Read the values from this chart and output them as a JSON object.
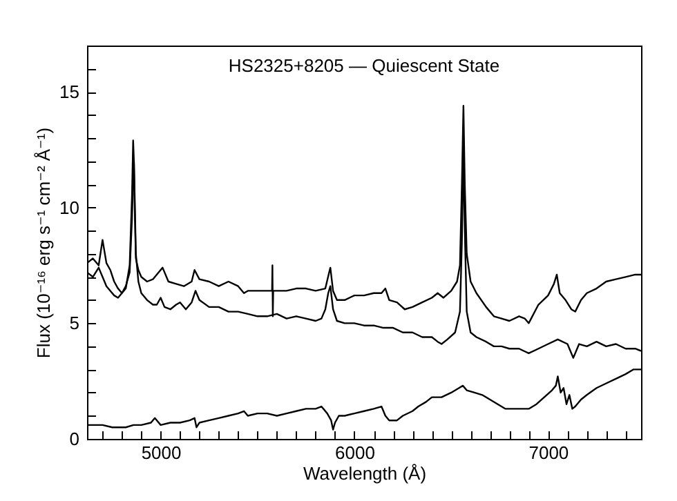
{
  "chart_data": {
    "type": "line",
    "title": "HS2325+8205 — Quiescent State",
    "xlabel": "Wavelength (Å)",
    "ylabel": "Flux (10⁻¹⁶ erg s⁻¹ cm⁻² Å⁻¹)",
    "xlim": [
      4620,
      7480
    ],
    "ylim": [
      0,
      17
    ],
    "xticks": [
      {
        "value": 4700,
        "label": null
      },
      {
        "value": 4800,
        "label": null
      },
      {
        "value": 4900,
        "label": null
      },
      5000,
      {
        "value": 5100,
        "label": null
      },
      {
        "value": 5200,
        "label": null
      },
      {
        "value": 5300,
        "label": null
      },
      {
        "value": 5400,
        "label": null
      },
      {
        "value": 5500,
        "label": null
      },
      {
        "value": 5600,
        "label": null
      },
      {
        "value": 5700,
        "label": null
      },
      {
        "value": 5800,
        "label": null
      },
      {
        "value": 5900,
        "label": null
      },
      6000,
      {
        "value": 6100,
        "label": null
      },
      {
        "value": 6200,
        "label": null
      },
      {
        "value": 6300,
        "label": null
      },
      {
        "value": 6400,
        "label": null
      },
      {
        "value": 6500,
        "label": null
      },
      {
        "value": 6600,
        "label": null
      },
      {
        "value": 6700,
        "label": null
      },
      {
        "value": 6800,
        "label": null
      },
      {
        "value": 6900,
        "label": null
      },
      7000,
      {
        "value": 7100,
        "label": null
      },
      {
        "value": 7200,
        "label": null
      },
      {
        "value": 7300,
        "label": null
      },
      {
        "value": 7400,
        "label": null
      }
    ],
    "yticks": [
      0,
      {
        "value": 1,
        "label": null
      },
      {
        "value": 2,
        "label": null
      },
      {
        "value": 3,
        "label": null
      },
      {
        "value": 4,
        "label": null
      },
      5,
      {
        "value": 6,
        "label": null
      },
      {
        "value": 7,
        "label": null
      },
      {
        "value": 8,
        "label": null
      },
      {
        "value": 9,
        "label": null
      },
      10,
      {
        "value": 11,
        "label": null
      },
      {
        "value": 12,
        "label": null
      },
      {
        "value": 13,
        "label": null
      },
      {
        "value": 14,
        "label": null
      },
      15,
      {
        "value": 16,
        "label": null
      }
    ],
    "marker": "none",
    "line_style": "solid",
    "series": [
      {
        "color": "#000000",
        "x": [
          4620,
          4650,
          4680,
          4700,
          4720,
          4740,
          4760,
          4780,
          4800,
          4820,
          4840,
          4852,
          4858,
          4862,
          4866,
          4872,
          4885,
          4900,
          4930,
          4960,
          4990,
          5010,
          5040,
          5080,
          5120,
          5160,
          5175,
          5200,
          5250,
          5300,
          5350,
          5400,
          5430,
          5450,
          5500,
          5550,
          5575,
          5577,
          5579,
          5581,
          5650,
          5700,
          5750,
          5800,
          5850,
          5870,
          5876,
          5890,
          5910,
          5950,
          6000,
          6050,
          6100,
          6140,
          6160,
          6180,
          6220,
          6260,
          6300,
          6350,
          6400,
          6430,
          6460,
          6500,
          6530,
          6545,
          6555,
          6563,
          6570,
          6580,
          6600,
          6630,
          6680,
          6720,
          6760,
          6800,
          6850,
          6880,
          6900,
          6950,
          7000,
          7030,
          7045,
          7060,
          7090,
          7120,
          7140,
          7170,
          7200,
          7250,
          7300,
          7350,
          7400,
          7450,
          7480
        ],
        "values": [
          7.6,
          7.8,
          7.5,
          8.6,
          7.6,
          7.3,
          6.8,
          6.5,
          6.3,
          6.5,
          7.5,
          10.5,
          12.9,
          12.0,
          10.0,
          7.8,
          7.3,
          7.0,
          6.8,
          6.9,
          7.2,
          7.4,
          6.8,
          6.7,
          6.6,
          6.8,
          7.3,
          6.9,
          6.8,
          6.6,
          6.8,
          6.6,
          6.3,
          6.4,
          6.4,
          6.4,
          6.4,
          7.5,
          5.3,
          6.4,
          6.4,
          6.5,
          6.5,
          6.4,
          6.5,
          7.2,
          7.4,
          6.4,
          6.0,
          6.0,
          6.2,
          6.2,
          6.3,
          6.3,
          6.5,
          6.0,
          5.9,
          5.6,
          5.7,
          5.9,
          6.1,
          6.3,
          6.1,
          6.4,
          6.8,
          7.5,
          11.0,
          14.4,
          11.0,
          8.0,
          6.8,
          6.3,
          5.7,
          5.3,
          5.2,
          5.1,
          5.3,
          5.2,
          5.0,
          5.8,
          6.2,
          6.7,
          7.1,
          6.3,
          6.0,
          5.6,
          5.5,
          6.0,
          6.3,
          6.5,
          6.8,
          6.9,
          7.0,
          7.1,
          7.1
        ]
      },
      {
        "color": "#000000",
        "x": [
          4620,
          4650,
          4680,
          4700,
          4720,
          4740,
          4760,
          4780,
          4800,
          4820,
          4840,
          4852,
          4858,
          4862,
          4866,
          4872,
          4885,
          4900,
          4930,
          4960,
          4980,
          5000,
          5020,
          5050,
          5080,
          5100,
          5130,
          5160,
          5180,
          5200,
          5250,
          5300,
          5350,
          5400,
          5450,
          5500,
          5550,
          5600,
          5650,
          5700,
          5750,
          5800,
          5830,
          5850,
          5865,
          5876,
          5890,
          5910,
          5950,
          6000,
          6050,
          6100,
          6150,
          6200,
          6250,
          6300,
          6350,
          6400,
          6430,
          6450,
          6480,
          6520,
          6545,
          6555,
          6563,
          6570,
          6580,
          6600,
          6630,
          6680,
          6720,
          6760,
          6800,
          6850,
          6900,
          6950,
          7000,
          7050,
          7100,
          7130,
          7160,
          7200,
          7250,
          7300,
          7350,
          7400,
          7450,
          7480
        ],
        "values": [
          7.2,
          7.0,
          7.4,
          7.0,
          6.6,
          6.4,
          6.2,
          6.1,
          6.3,
          6.6,
          7.2,
          9.5,
          11.4,
          12.0,
          10.5,
          8.0,
          6.8,
          6.3,
          6.0,
          5.8,
          5.8,
          6.1,
          5.7,
          5.6,
          5.8,
          5.9,
          5.6,
          5.9,
          6.4,
          6.0,
          5.7,
          5.7,
          5.5,
          5.5,
          5.4,
          5.3,
          5.3,
          5.4,
          5.2,
          5.3,
          5.2,
          5.1,
          5.2,
          5.6,
          6.3,
          6.6,
          5.6,
          5.1,
          5.0,
          5.0,
          4.9,
          4.9,
          4.8,
          4.8,
          4.6,
          4.6,
          4.4,
          4.4,
          4.2,
          4.1,
          4.3,
          4.6,
          5.5,
          8.5,
          12.4,
          9.0,
          5.5,
          4.6,
          4.4,
          4.2,
          4.0,
          4.0,
          3.9,
          3.9,
          3.7,
          3.9,
          4.1,
          4.3,
          4.1,
          3.5,
          4.1,
          4.0,
          4.2,
          4.0,
          4.1,
          3.9,
          3.9,
          3.8
        ]
      },
      {
        "color": "#000000",
        "x": [
          4620,
          4660,
          4700,
          4750,
          4780,
          4820,
          4860,
          4900,
          4950,
          4970,
          5000,
          5050,
          5100,
          5150,
          5175,
          5185,
          5200,
          5250,
          5300,
          5350,
          5400,
          5430,
          5450,
          5500,
          5550,
          5600,
          5650,
          5700,
          5750,
          5800,
          5830,
          5860,
          5880,
          5890,
          5900,
          5920,
          5950,
          6000,
          6050,
          6100,
          6140,
          6160,
          6180,
          6220,
          6250,
          6300,
          6330,
          6370,
          6400,
          6450,
          6500,
          6540,
          6560,
          6580,
          6620,
          6660,
          6700,
          6740,
          6780,
          6820,
          6860,
          6900,
          6940,
          6980,
          7020,
          7040,
          7050,
          7065,
          7080,
          7095,
          7110,
          7125,
          7140,
          7170,
          7200,
          7250,
          7300,
          7350,
          7400,
          7440,
          7480
        ],
        "values": [
          0.6,
          0.6,
          0.6,
          0.5,
          0.5,
          0.5,
          0.6,
          0.6,
          0.7,
          0.9,
          0.6,
          0.7,
          0.7,
          0.8,
          0.9,
          0.5,
          0.7,
          0.8,
          0.9,
          1.0,
          1.1,
          1.2,
          1.0,
          1.1,
          1.1,
          1.0,
          1.1,
          1.2,
          1.3,
          1.3,
          1.4,
          1.1,
          0.8,
          0.4,
          0.7,
          1.0,
          1.0,
          1.1,
          1.2,
          1.3,
          1.4,
          1.0,
          0.8,
          0.8,
          1.0,
          1.2,
          1.4,
          1.6,
          1.8,
          1.8,
          2.0,
          2.2,
          2.3,
          2.1,
          2.0,
          1.9,
          1.7,
          1.5,
          1.3,
          1.3,
          1.3,
          1.3,
          1.5,
          1.8,
          2.1,
          2.3,
          2.7,
          2.0,
          2.2,
          1.5,
          1.9,
          1.3,
          1.4,
          1.7,
          1.9,
          2.2,
          2.4,
          2.6,
          2.8,
          3.0,
          3.0
        ]
      }
    ]
  }
}
